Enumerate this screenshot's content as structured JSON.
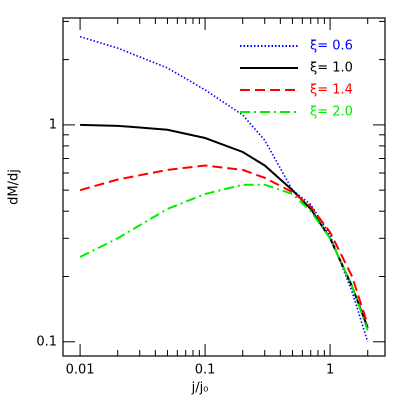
{
  "chart_data": {
    "type": "line",
    "log_x": true,
    "log_y": true,
    "x_label": "j/j₀",
    "y_label": "dM/dj",
    "xlim": [
      0.0073,
      2.75
    ],
    "ylim": [
      0.086,
      3.11
    ],
    "xticks": [
      0.01,
      0.1,
      1
    ],
    "yticks": [
      0.1,
      1
    ],
    "xminorticks": [
      0.02,
      0.03,
      0.04,
      0.05,
      0.06,
      0.07,
      0.08,
      0.09,
      0.2,
      0.3,
      0.4,
      0.5,
      0.6,
      0.7,
      0.8,
      0.9,
      2
    ],
    "yminorticks": [
      0.2,
      0.3,
      0.4,
      0.5,
      0.6,
      0.7,
      0.8,
      0.9,
      2,
      3
    ],
    "legend": "upper right",
    "x": [
      0.01,
      0.02,
      0.05,
      0.1,
      0.2,
      0.3,
      0.5,
      0.7,
      1,
      1.5,
      2
    ],
    "series": [
      {
        "name": "ξ= 0.6",
        "color": "#0000ff",
        "style": "dotted",
        "values": [
          2.55,
          2.26,
          1.83,
          1.45,
          1.11,
          0.85,
          0.5,
          0.43,
          0.31,
          0.17,
          0.1
        ]
      },
      {
        "name": "ξ= 1.0",
        "color": "#000000",
        "style": "solid",
        "values": [
          1.0,
          0.99,
          0.95,
          0.87,
          0.75,
          0.65,
          0.5,
          0.41,
          0.3,
          0.18,
          0.116
        ]
      },
      {
        "name": "ξ= 1.4",
        "color": "#ff0000",
        "style": "dashed",
        "values": [
          0.5,
          0.56,
          0.62,
          0.65,
          0.62,
          0.57,
          0.49,
          0.42,
          0.32,
          0.2,
          0.12
        ]
      },
      {
        "name": "ξ= 2.0",
        "color": "#00ee00",
        "style": "dashdot",
        "values": [
          0.246,
          0.3,
          0.41,
          0.48,
          0.53,
          0.53,
          0.48,
          0.4,
          0.3,
          0.18,
          0.113
        ]
      }
    ]
  }
}
